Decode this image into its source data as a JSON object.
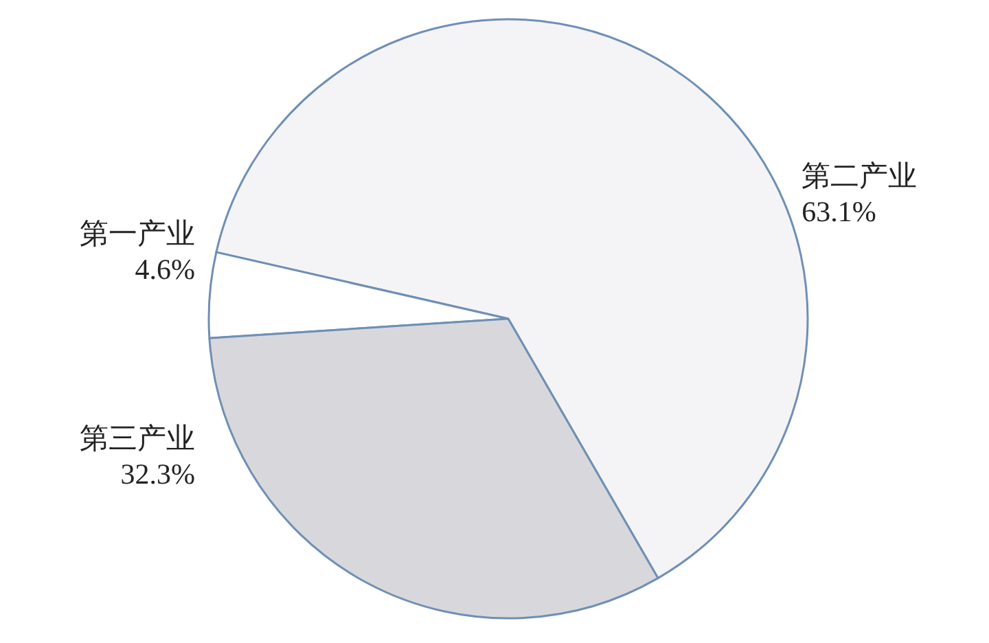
{
  "chart_data": {
    "type": "pie",
    "categories": [
      "第二产业",
      "第一产业",
      "第三产业"
    ],
    "values": [
      63.1,
      4.6,
      32.3
    ],
    "value_labels": [
      "63.1%",
      "4.6%",
      "32.3%"
    ],
    "colors": [
      "#f4f4f6",
      "#ffffff",
      "#d8d8dc"
    ]
  }
}
